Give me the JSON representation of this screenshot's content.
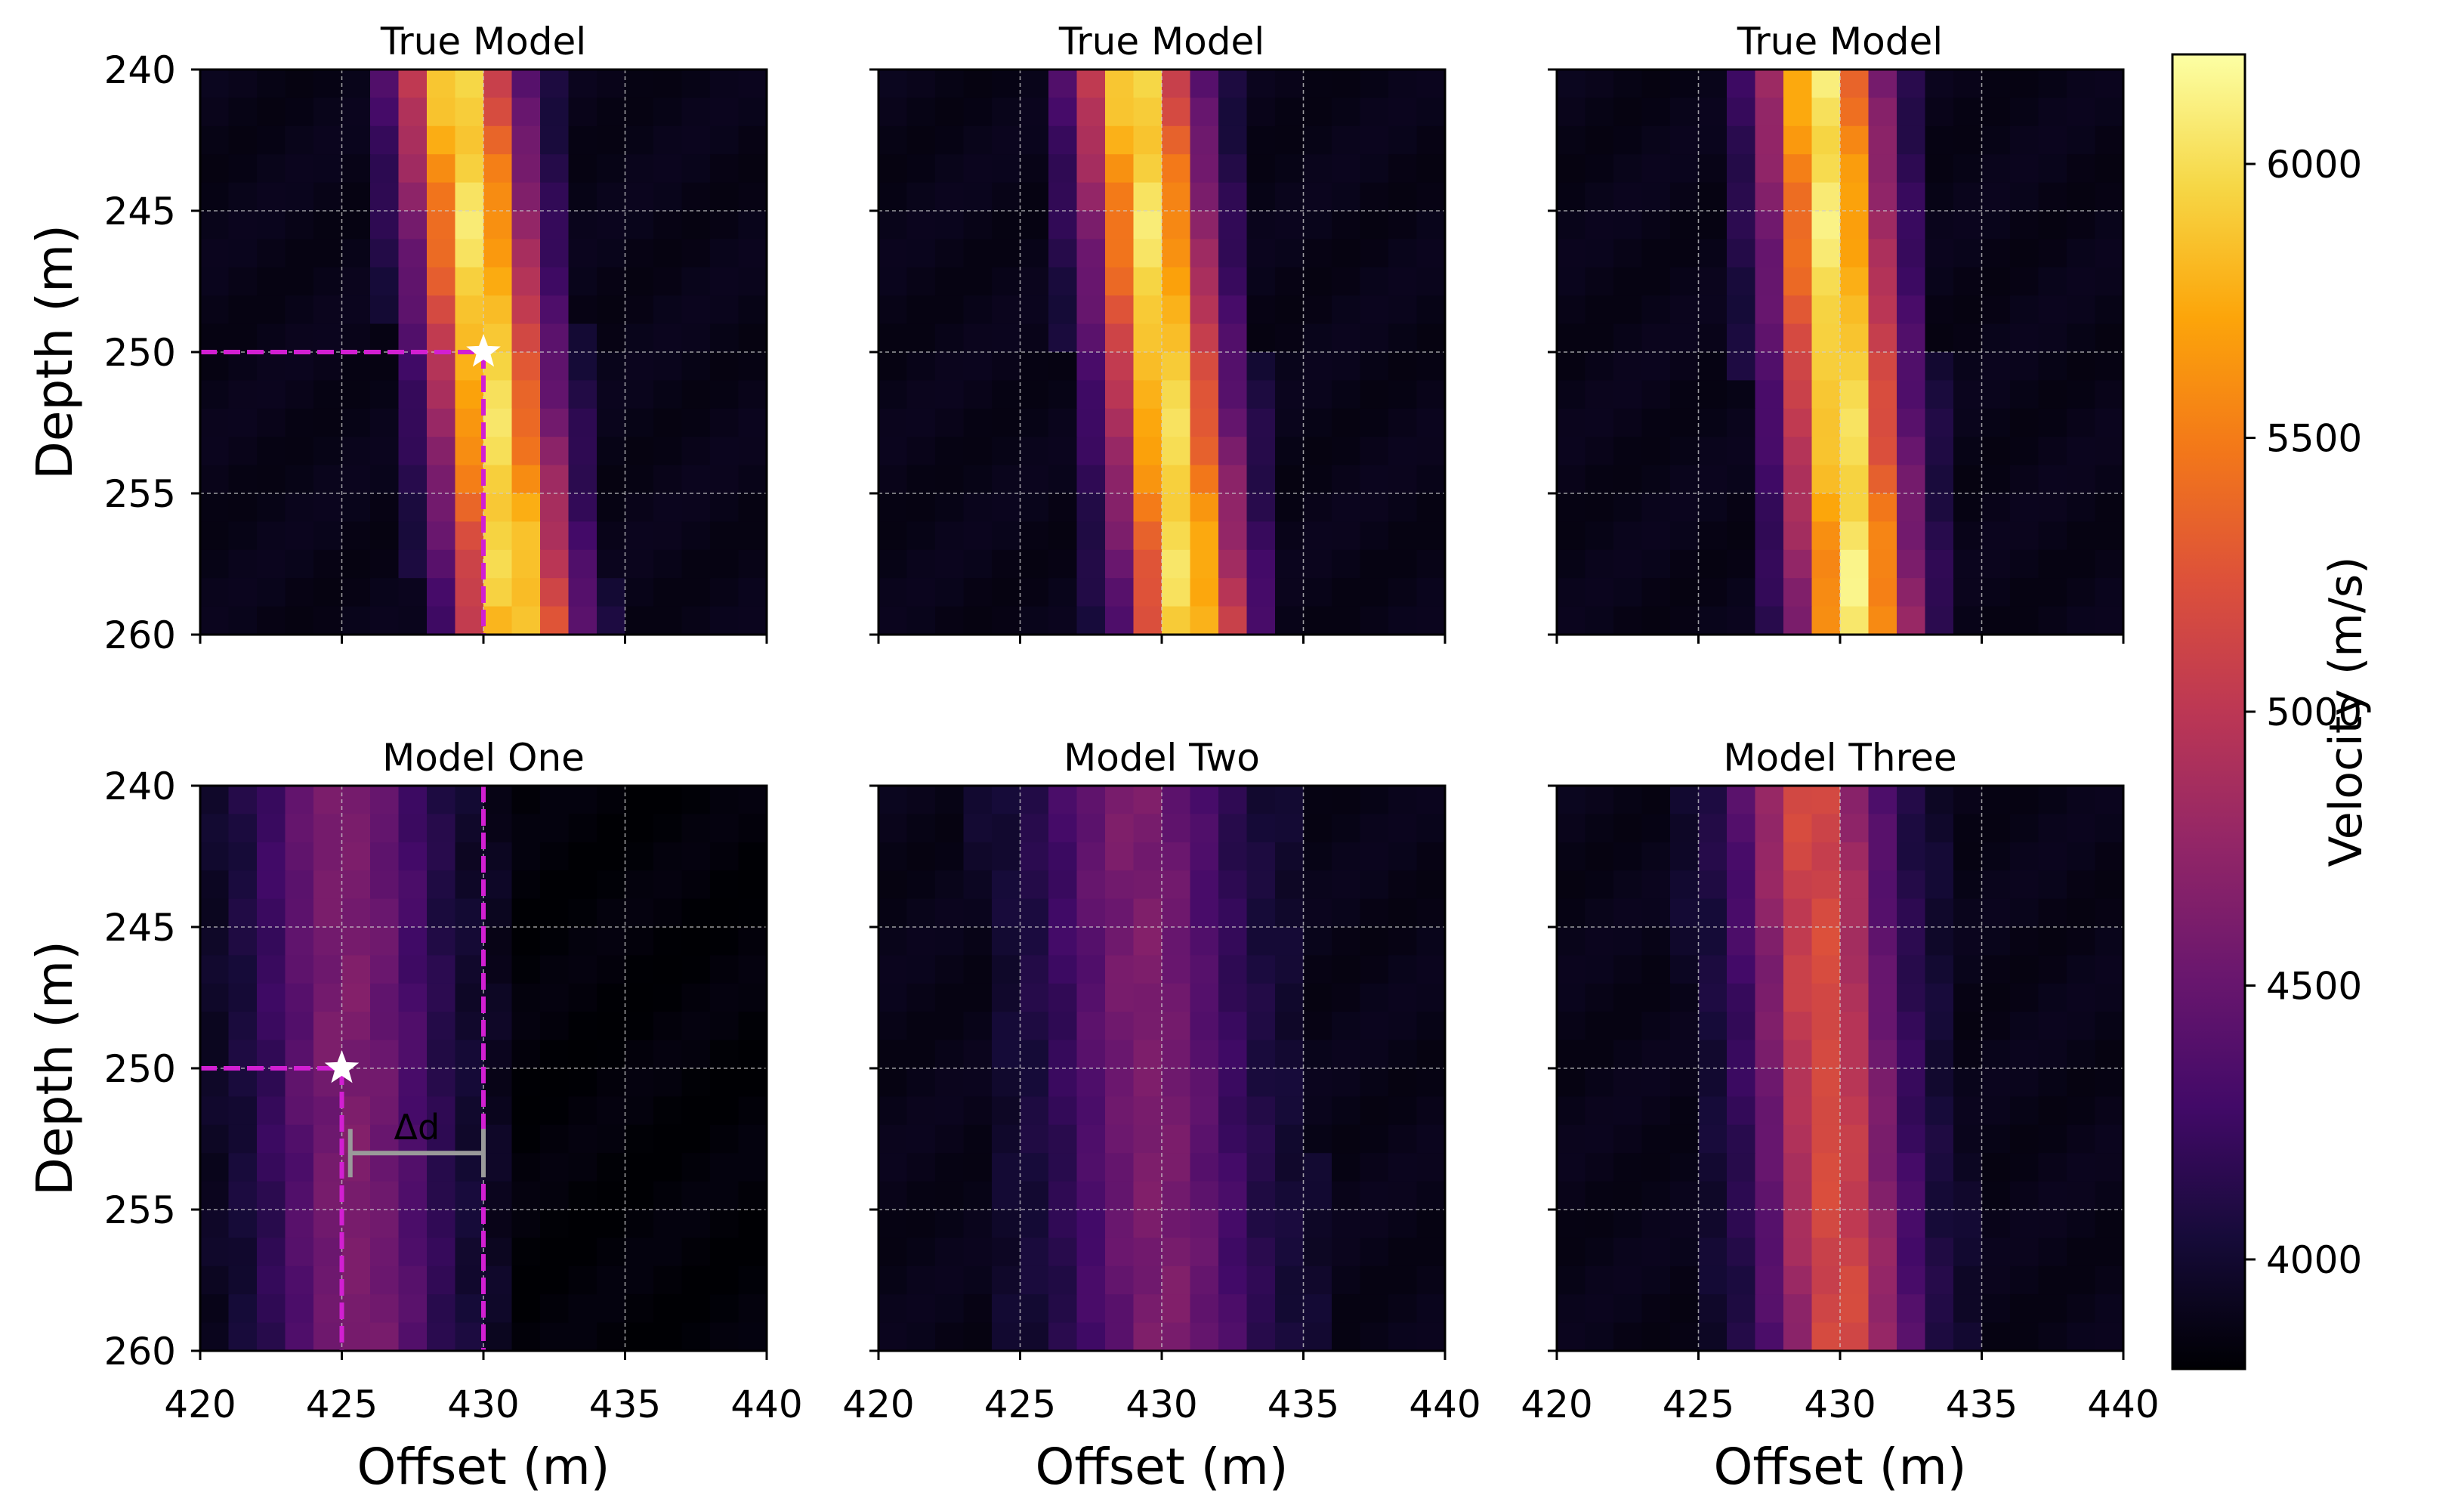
{
  "chart_data": [
    {
      "type": "heatmap",
      "panel": "top-left",
      "title": "True Model",
      "xlabel": "",
      "ylabel": "Depth (m)",
      "xlim": [
        420,
        440
      ],
      "ylim": [
        260,
        240
      ],
      "xticks": [
        "420",
        "425",
        "430",
        "435",
        "440"
      ],
      "yticks": [
        "240",
        "245",
        "250",
        "255",
        "260"
      ],
      "show_xticklabels": false,
      "show_yticklabels": true,
      "grid": true,
      "anomaly": {
        "center_top": 429.0,
        "center_bottom": 431.2,
        "peak_velocity": 6000,
        "width": 1.4,
        "spread": 1.6
      },
      "markers": [
        {
          "label": "source",
          "x": 430.0,
          "y": 250.0
        }
      ],
      "guides": [
        {
          "orientation": "horizontal",
          "y": 250,
          "from_x": 420,
          "to_x": 430
        },
        {
          "orientation": "vertical",
          "x": 430,
          "from_y": 250,
          "to_y": 260
        }
      ]
    },
    {
      "type": "heatmap",
      "panel": "top-middle",
      "title": "True Model",
      "xlabel": "",
      "ylabel": "",
      "xlim": [
        420,
        440
      ],
      "ylim": [
        260,
        240
      ],
      "xticks": [
        "420",
        "425",
        "430",
        "435",
        "440"
      ],
      "yticks": [
        "240",
        "245",
        "250",
        "255",
        "260"
      ],
      "show_xticklabels": false,
      "show_yticklabels": false,
      "grid": true,
      "anomaly": {
        "center_top": 429.0,
        "center_bottom": 431.0,
        "peak_velocity": 6000,
        "width": 1.4,
        "spread": 1.6
      },
      "markers": [],
      "guides": []
    },
    {
      "type": "heatmap",
      "panel": "top-right",
      "title": "True Model",
      "xlabel": "",
      "ylabel": "",
      "xlim": [
        420,
        440
      ],
      "ylim": [
        260,
        240
      ],
      "xticks": [
        "420",
        "425",
        "430",
        "435",
        "440"
      ],
      "yticks": [
        "240",
        "245",
        "250",
        "255",
        "260"
      ],
      "show_xticklabels": false,
      "show_yticklabels": false,
      "grid": true,
      "anomaly": {
        "center_top": 429.3,
        "center_bottom": 430.6,
        "peak_velocity": 6050,
        "width": 1.4,
        "spread": 1.6
      },
      "markers": [],
      "guides": []
    },
    {
      "type": "heatmap",
      "panel": "bottom-left",
      "title": "Model One",
      "xlabel": "Offset (m)",
      "ylabel": "Depth (m)",
      "xlim": [
        420,
        440
      ],
      "ylim": [
        260,
        240
      ],
      "xticks": [
        "420",
        "425",
        "430",
        "435",
        "440"
      ],
      "yticks": [
        "240",
        "245",
        "250",
        "255",
        "260"
      ],
      "show_xticklabels": true,
      "show_yticklabels": true,
      "grid": true,
      "anomaly": {
        "center_top": 425.0,
        "center_bottom": 425.6,
        "peak_velocity": 4620,
        "width": 2.2,
        "spread": 2.5,
        "background": 3880
      },
      "markers": [
        {
          "label": "source",
          "x": 425.0,
          "y": 250.0
        }
      ],
      "guides": [
        {
          "orientation": "horizontal",
          "y": 250,
          "from_x": 420,
          "to_x": 425
        },
        {
          "orientation": "vertical",
          "x": 425,
          "from_y": 250,
          "to_y": 260
        },
        {
          "orientation": "vertical",
          "x": 430,
          "from_y": 240,
          "to_y": 260
        }
      ],
      "offset_bracket": {
        "label": "Δd",
        "x_start": 425.3,
        "x_end": 430.0,
        "y": 253.0
      }
    },
    {
      "type": "heatmap",
      "panel": "bottom-middle",
      "title": "Model Two",
      "xlabel": "Offset (m)",
      "ylabel": "",
      "xlim": [
        420,
        440
      ],
      "ylim": [
        260,
        240
      ],
      "xticks": [
        "420",
        "425",
        "430",
        "435",
        "440"
      ],
      "yticks": [
        "240",
        "245",
        "250",
        "255",
        "260"
      ],
      "show_xticklabels": true,
      "show_yticklabels": false,
      "grid": true,
      "anomaly": {
        "center_top": 429.0,
        "center_bottom": 430.2,
        "peak_velocity": 4620,
        "width": 2.2,
        "spread": 2.6
      },
      "markers": [],
      "guides": []
    },
    {
      "type": "heatmap",
      "panel": "bottom-right",
      "title": "Model Three",
      "xlabel": "Offset (m)",
      "ylabel": "",
      "xlim": [
        420,
        440
      ],
      "ylim": [
        260,
        240
      ],
      "xticks": [
        "420",
        "425",
        "430",
        "435",
        "440"
      ],
      "yticks": [
        "240",
        "245",
        "250",
        "255",
        "260"
      ],
      "show_xticklabels": true,
      "show_yticklabels": false,
      "grid": true,
      "anomaly": {
        "center_top": 428.9,
        "center_bottom": 430.1,
        "peak_velocity": 5180,
        "width": 1.7,
        "spread": 2.2
      },
      "markers": [],
      "guides": []
    }
  ],
  "colorbar": {
    "label": "Velocity (m/s)",
    "colormap": "inferno",
    "vmin": 3800,
    "vmax": 6200,
    "ticks": [
      "4000",
      "4500",
      "5000",
      "5500",
      "6000"
    ]
  },
  "colors": {
    "guide_line": "#d21fd2",
    "marker": "#ffffff",
    "bracket": "#9a9a9a",
    "grid": "#cfcfcf"
  }
}
